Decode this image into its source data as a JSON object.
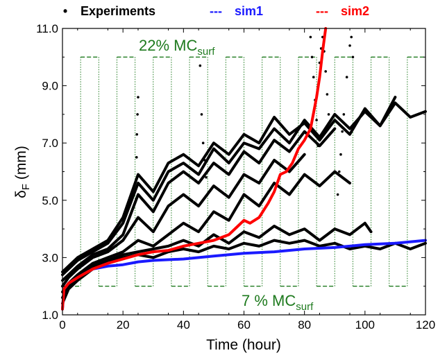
{
  "chart_data": {
    "type": "line",
    "xlabel": "Time (hour)",
    "ylabel_main": "δ",
    "ylabel_sub": "F",
    "ylabel_unit": " (mm)",
    "xlim": [
      0,
      120
    ],
    "ylim": [
      1.0,
      11.0
    ],
    "x_ticks": [
      "0",
      "20",
      "40",
      "60",
      "80",
      "100",
      "120"
    ],
    "y_ticks": [
      "1.0",
      "3.0",
      "5.0",
      "7.0",
      "9.0",
      "11.0"
    ],
    "grid": false,
    "legend_position": "top",
    "legend": [
      {
        "label": "Experiments",
        "marker": "•",
        "color": "#000000"
      },
      {
        "label": "sim1",
        "marker": "---",
        "color": "#1a1aff"
      },
      {
        "label": "sim2",
        "marker": "---",
        "color": "#ff0000"
      }
    ],
    "annotations": {
      "high": {
        "main": "22% MC",
        "sub": "surf"
      },
      "low": {
        "main": "7 % MC",
        "sub": "surf"
      }
    },
    "colors": {
      "experiments": "#000000",
      "sim1": "#1a1aff",
      "sim2": "#ff0000",
      "moisture_cycle": "#1e7a1e"
    },
    "moisture_cycle": {
      "high": 10.0,
      "low": 2.0,
      "transitions": [
        6,
        12,
        18,
        24,
        30,
        36,
        42,
        48,
        54,
        60,
        66,
        72,
        78,
        84,
        90,
        96,
        102,
        108,
        114
      ],
      "start_state": "low",
      "end": 120
    },
    "sim1": {
      "x": [
        0,
        0.5,
        2,
        5,
        10,
        15,
        20,
        25,
        30,
        40,
        50,
        60,
        70,
        80,
        90,
        100,
        110,
        120
      ],
      "y": [
        1.2,
        1.9,
        2.1,
        2.3,
        2.6,
        2.7,
        2.75,
        2.85,
        2.9,
        2.95,
        3.05,
        3.15,
        3.2,
        3.3,
        3.35,
        3.45,
        3.5,
        3.6
      ]
    },
    "sim2": {
      "x": [
        0,
        0.5,
        2,
        5,
        10,
        15,
        20,
        25,
        30,
        35,
        40,
        45,
        50,
        55,
        58,
        60,
        62,
        65,
        68,
        70,
        72,
        74,
        76,
        78,
        80,
        82,
        84,
        85,
        86,
        87
      ],
      "y": [
        1.2,
        1.9,
        2.1,
        2.3,
        2.6,
        2.8,
        2.95,
        3.1,
        3.2,
        3.25,
        3.4,
        3.5,
        3.6,
        3.8,
        4.1,
        4.3,
        4.2,
        4.4,
        4.9,
        5.3,
        5.9,
        6.0,
        6.3,
        6.8,
        7.1,
        7.5,
        8.6,
        9.3,
        10.2,
        11.0
      ]
    },
    "experiments": [
      {
        "x": [
          0,
          2,
          5,
          10,
          15,
          20,
          25,
          30,
          35,
          40,
          45,
          50,
          55,
          60,
          65,
          70,
          75,
          80,
          85,
          90,
          95,
          100,
          105,
          110,
          115,
          120
        ],
        "y": [
          1.4,
          1.9,
          2.2,
          2.6,
          2.9,
          3.0,
          3.1,
          3.0,
          3.2,
          3.3,
          3.2,
          3.4,
          3.3,
          3.5,
          3.4,
          3.6,
          3.5,
          3.6,
          3.4,
          3.5,
          3.3,
          3.4,
          3.3,
          3.5,
          3.3,
          3.5
        ]
      },
      {
        "x": [
          0,
          2,
          5,
          10,
          15,
          20,
          25,
          30,
          35,
          40,
          45,
          50,
          55,
          60,
          65,
          70,
          75,
          80,
          85,
          90,
          95,
          100,
          102
        ],
        "y": [
          1.6,
          2.0,
          2.3,
          2.7,
          2.9,
          3.1,
          3.2,
          3.3,
          3.4,
          3.6,
          3.4,
          3.8,
          3.5,
          3.9,
          3.7,
          4.1,
          3.8,
          4.0,
          3.6,
          4.0,
          3.8,
          4.2,
          3.9
        ]
      },
      {
        "x": [
          0,
          2,
          5,
          10,
          15,
          20,
          25,
          30,
          35,
          40,
          45,
          50,
          55,
          60,
          65,
          70,
          75,
          80,
          85,
          90,
          95
        ],
        "y": [
          1.8,
          2.1,
          2.4,
          2.8,
          3.0,
          3.2,
          3.6,
          3.4,
          3.8,
          4.2,
          3.9,
          4.6,
          4.3,
          5.2,
          4.8,
          5.6,
          5.2,
          5.9,
          5.5,
          6.0,
          5.6
        ]
      },
      {
        "x": [
          0,
          2,
          5,
          10,
          15,
          20,
          25,
          30,
          35,
          40,
          45,
          50,
          55,
          60,
          65,
          70,
          75,
          80
        ],
        "y": [
          2.0,
          2.3,
          2.6,
          3.0,
          3.2,
          3.6,
          4.4,
          3.9,
          4.8,
          5.2,
          4.8,
          5.5,
          5.1,
          5.9,
          5.6,
          6.4,
          6.0,
          6.6
        ]
      },
      {
        "x": [
          0,
          2,
          5,
          10,
          15,
          20,
          25,
          30,
          35,
          40,
          45,
          50,
          55,
          60,
          65,
          70,
          75,
          80,
          85,
          90
        ],
        "y": [
          2.2,
          2.4,
          2.7,
          3.1,
          3.3,
          3.8,
          5.2,
          4.6,
          5.6,
          6.0,
          5.6,
          6.3,
          5.9,
          6.7,
          6.3,
          7.1,
          6.7,
          7.4,
          6.9,
          7.5
        ]
      },
      {
        "x": [
          0,
          2,
          5,
          10,
          15,
          20,
          25,
          30,
          35,
          40,
          45,
          50,
          55,
          60,
          65,
          70,
          75,
          80,
          85,
          90,
          95,
          100,
          105,
          110,
          115,
          120
        ],
        "y": [
          2.4,
          2.6,
          2.9,
          3.2,
          3.5,
          4.2,
          5.6,
          5.0,
          6.0,
          6.3,
          5.9,
          6.8,
          6.3,
          7.0,
          6.8,
          7.5,
          7.0,
          7.8,
          7.2,
          8.0,
          7.5,
          8.1,
          7.6,
          8.4,
          7.9,
          8.1
        ]
      },
      {
        "x": [
          0,
          2,
          5,
          10,
          15,
          20,
          25,
          30,
          35,
          40,
          45,
          50,
          55,
          60,
          65,
          70,
          75,
          80,
          85,
          90,
          95,
          100,
          105,
          110
        ],
        "y": [
          2.5,
          2.7,
          3.0,
          3.3,
          3.6,
          4.4,
          5.9,
          5.3,
          6.3,
          6.6,
          6.2,
          7.0,
          6.6,
          7.3,
          7.0,
          7.9,
          7.3,
          7.7,
          7.1,
          7.8,
          7.3,
          8.2,
          7.6,
          8.6
        ]
      }
    ],
    "experiment_outliers": {
      "x": [
        24.5,
        24.6,
        24.8,
        25.0,
        45.5,
        46.0,
        46.5,
        47.0,
        47.5,
        82.0,
        82.5,
        83.0,
        83.5,
        84.0,
        84.5,
        85.0,
        85.5,
        86.0,
        86.5,
        87.0,
        87.5,
        88.0,
        91.0,
        91.5,
        92.0,
        92.5,
        93.0,
        94.0,
        95.0,
        95.5,
        96.0
      ],
      "y": [
        6.5,
        7.3,
        8.0,
        8.6,
        9.7,
        8.0,
        7.0,
        6.4,
        5.8,
        10.7,
        10.0,
        9.3,
        8.5,
        7.8,
        6.9,
        9.8,
        10.3,
        10.7,
        10.2,
        9.5,
        8.7,
        8.0,
        5.2,
        6.0,
        6.6,
        7.4,
        8.0,
        9.3,
        10.4,
        10.7,
        10.0
      ]
    }
  }
}
